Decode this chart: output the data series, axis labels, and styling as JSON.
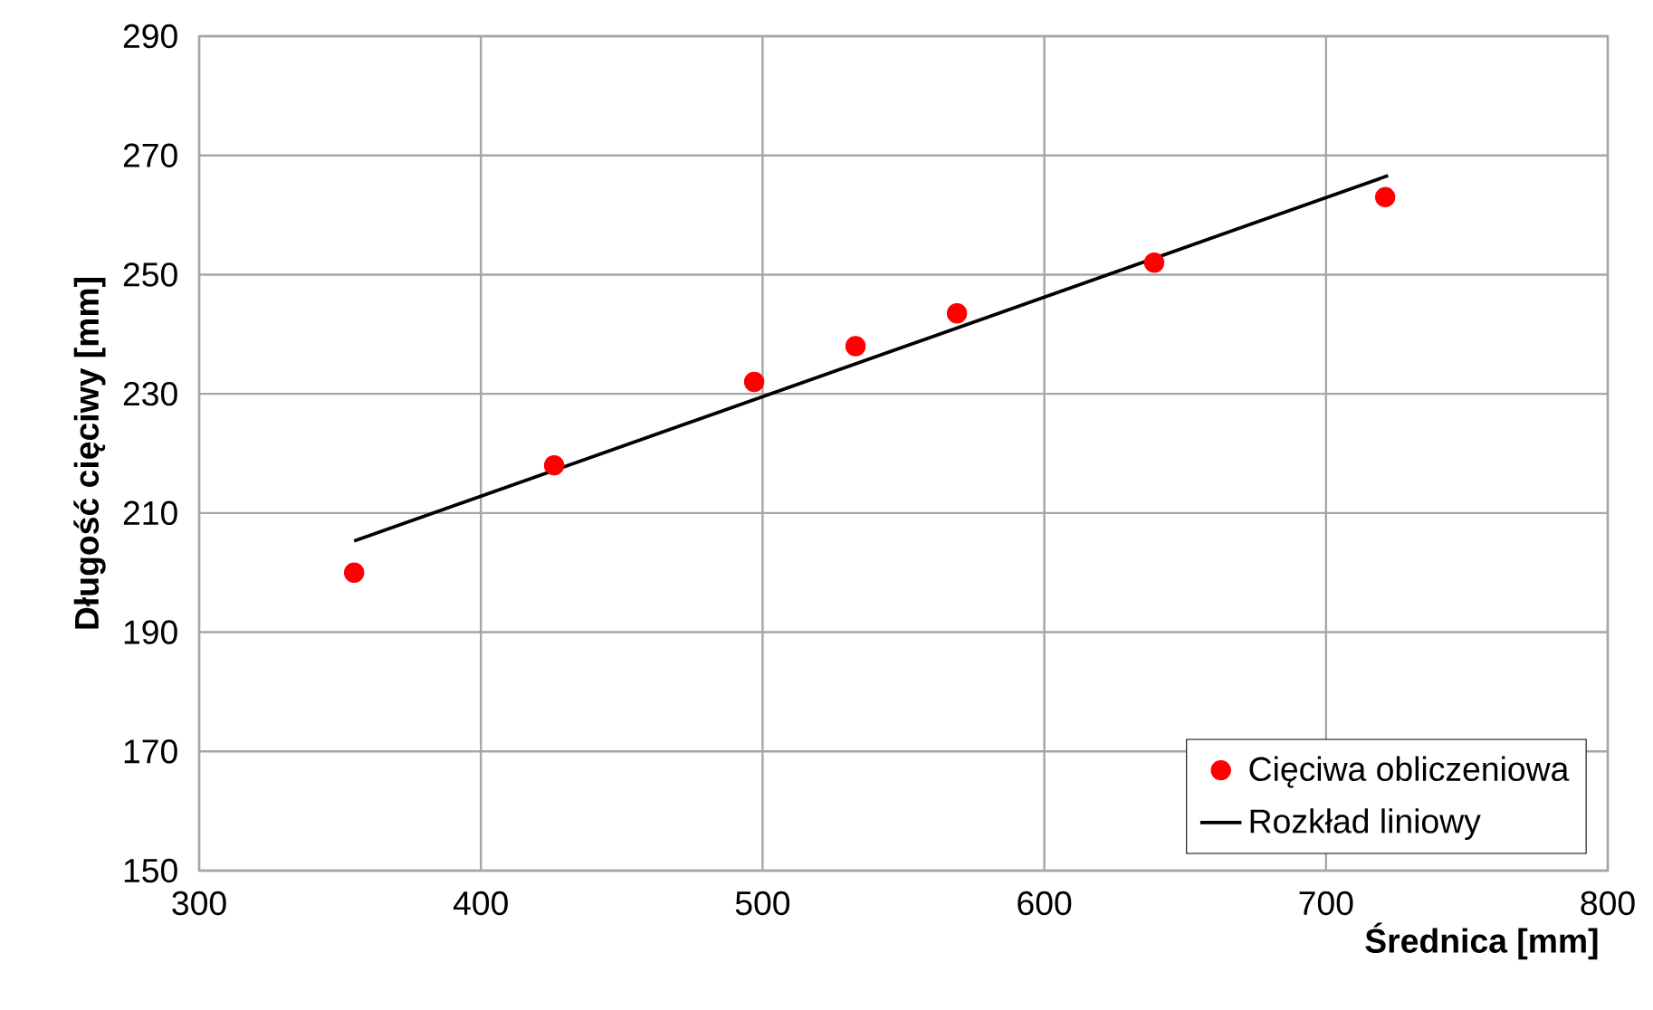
{
  "chart_data": {
    "type": "scatter",
    "xlabel": "Średnica [mm]",
    "ylabel": "Długość cięciwy [mm]",
    "xlim": [
      300,
      800
    ],
    "ylim": [
      150,
      290
    ],
    "xticks": [
      300,
      400,
      500,
      600,
      700,
      800
    ],
    "yticks": [
      150,
      170,
      190,
      210,
      230,
      250,
      270,
      290
    ],
    "grid": true,
    "legend": "bottom right",
    "series": [
      {
        "name": "Cięciwa obliczeniowa",
        "marker": "circle",
        "color": "#ff0000",
        "x": [
          355,
          426,
          497,
          533,
          569,
          639,
          721
        ],
        "values": [
          200,
          218,
          232,
          238,
          243.5,
          252,
          263
        ]
      },
      {
        "name": "Rozkład liniowy",
        "type": "line",
        "marker": "none",
        "line_style": "solid",
        "color": "#000000",
        "x": [
          355,
          722
        ],
        "values": [
          205.3,
          266.6
        ]
      }
    ]
  }
}
